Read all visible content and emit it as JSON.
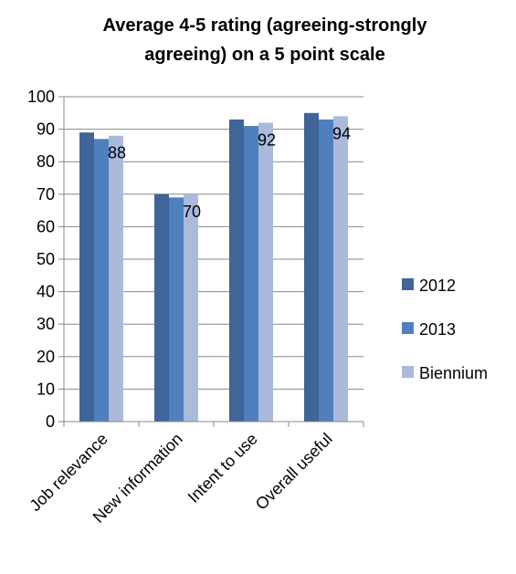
{
  "chart_data": {
    "type": "bar",
    "title_lines": [
      "Average 4-5 rating (agreeing-strongly",
      "agreeing) on a 5 point scale"
    ],
    "xlabel": "",
    "ylabel": "",
    "categories": [
      "Job relevance",
      "New information",
      "Intent to use",
      "Overall useful"
    ],
    "series": [
      {
        "name": "2012",
        "values": [
          89,
          70,
          93,
          95
        ],
        "color": "#3f6599"
      },
      {
        "name": "2013",
        "values": [
          87,
          69,
          91,
          93
        ],
        "color": "#4f80bd"
      },
      {
        "name": "Biennium",
        "values": [
          88,
          70,
          92,
          94
        ],
        "color": "#aabadb"
      }
    ],
    "data_labels": {
      "series": "Biennium",
      "values": [
        "88",
        "70",
        "92",
        "94"
      ]
    },
    "ylim": [
      0,
      100
    ],
    "yticks": [
      "0",
      "10",
      "20",
      "30",
      "40",
      "50",
      "60",
      "70",
      "80",
      "90",
      "100"
    ],
    "grid": true,
    "legend_position": "right",
    "gridline_color": "#888888",
    "axis_color": "#888888"
  }
}
